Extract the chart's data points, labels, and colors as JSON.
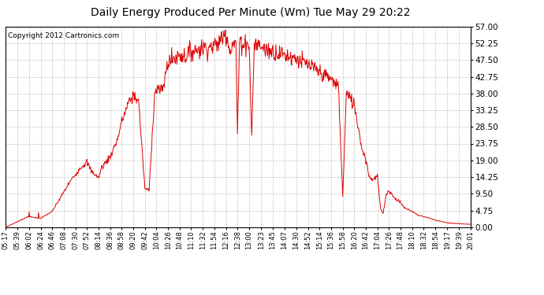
{
  "title": "Daily Energy Produced Per Minute (Wm) Tue May 29 20:22",
  "copyright": "Copyright 2012 Cartronics.com",
  "yticks": [
    0.0,
    4.75,
    9.5,
    14.25,
    19.0,
    23.75,
    28.5,
    33.25,
    38.0,
    42.75,
    47.5,
    52.25,
    57.0
  ],
  "ymax": 57.0,
  "ymin": 0.0,
  "line_color": "#dd0000",
  "bg_color": "#ffffff",
  "grid_color": "#aaaaaa",
  "title_fontsize": 11,
  "copyright_fontsize": 7,
  "xtick_labels": [
    "05:17",
    "05:39",
    "06:02",
    "06:24",
    "06:46",
    "07:08",
    "07:30",
    "07:52",
    "08:14",
    "08:36",
    "08:58",
    "09:20",
    "09:42",
    "10:04",
    "10:26",
    "10:48",
    "11:10",
    "11:32",
    "11:54",
    "12:16",
    "12:38",
    "13:00",
    "13:23",
    "13:45",
    "14:07",
    "14:30",
    "14:52",
    "15:14",
    "15:36",
    "15:58",
    "16:20",
    "16:42",
    "17:04",
    "17:26",
    "17:48",
    "18:10",
    "18:32",
    "18:54",
    "19:17",
    "19:39",
    "20:01"
  ]
}
